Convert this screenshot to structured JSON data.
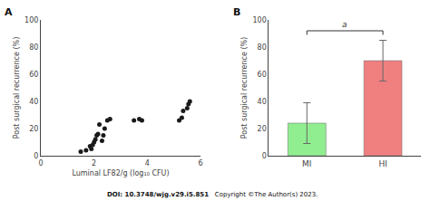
{
  "chart_data": [
    {
      "type": "scatter",
      "title": "A",
      "x": [
        1.5,
        1.7,
        1.85,
        1.9,
        1.95,
        2.0,
        2.05,
        2.1,
        2.15,
        2.2,
        2.3,
        2.35,
        2.4,
        2.5,
        2.6,
        3.5,
        3.7,
        3.8,
        5.2,
        5.3,
        5.35,
        5.5,
        5.55,
        5.6
      ],
      "values": [
        3,
        4,
        7,
        5,
        8,
        10,
        12,
        15,
        16,
        23,
        11,
        15,
        20,
        26,
        27,
        26,
        27,
        26,
        26,
        28,
        33,
        35,
        38,
        40
      ],
      "color": "#1a1a1a",
      "marker": "circle",
      "xlabel": "Luminal LF82/g (log₁₀ CFU)",
      "ylabel": "Post surgical recurrence (%)",
      "xlim": [
        0,
        6
      ],
      "xticks": [
        0,
        2,
        4,
        6
      ],
      "ylim": [
        0,
        100
      ],
      "yticks": [
        0,
        20,
        40,
        60,
        80,
        100
      ],
      "grid": false,
      "annotations": [
        "DOI: 10.3748/wjg.v29.i5.851",
        "Copyright ©The Author(s) 2023."
      ]
    },
    {
      "type": "bar",
      "title": "B",
      "categories": [
        "MI",
        "HI"
      ],
      "values": [
        24,
        70
      ],
      "errors": [
        15,
        15
      ],
      "colors": [
        "#90ee90",
        "#f08080"
      ],
      "ylabel": "Post surgical recurrence (%)",
      "ylim": [
        0,
        100
      ],
      "yticks": [
        0,
        20,
        40,
        60,
        80,
        100
      ],
      "grid": false,
      "annotations": [
        {
          "text": "a",
          "from": "MI",
          "to": "HI",
          "y": 92
        }
      ]
    }
  ]
}
